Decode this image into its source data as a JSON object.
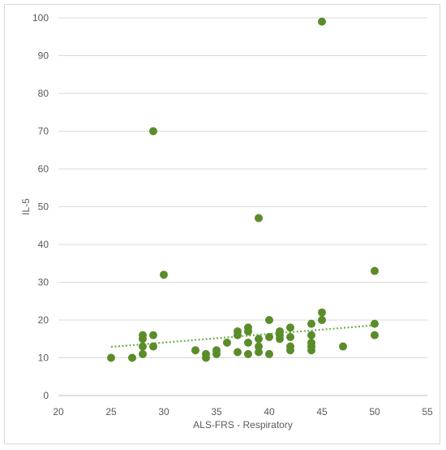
{
  "chart_data": {
    "type": "scatter",
    "xlabel": "ALS-FRS - Respiratory",
    "ylabel": "IL-5",
    "xlim": [
      20,
      55
    ],
    "ylim": [
      0,
      100
    ],
    "x_ticks": [
      "20",
      "25",
      "30",
      "35",
      "40",
      "45",
      "50",
      "55"
    ],
    "y_ticks": [
      "0",
      "10",
      "20",
      "30",
      "40",
      "50",
      "60",
      "70",
      "80",
      "90",
      "100"
    ],
    "grid": "horizontal",
    "legend": "none",
    "marker_color": "#5b8c2a",
    "trendline": {
      "type": "linear",
      "style": "dotted",
      "color": "#70ad47",
      "x": [
        25,
        50
      ],
      "y": [
        12.9,
        18.6
      ]
    },
    "points": [
      {
        "x": 25,
        "y": 10
      },
      {
        "x": 27,
        "y": 10
      },
      {
        "x": 28,
        "y": 11
      },
      {
        "x": 28,
        "y": 13
      },
      {
        "x": 28,
        "y": 15
      },
      {
        "x": 28,
        "y": 16
      },
      {
        "x": 29,
        "y": 13
      },
      {
        "x": 29,
        "y": 16
      },
      {
        "x": 29,
        "y": 70
      },
      {
        "x": 30,
        "y": 32
      },
      {
        "x": 33,
        "y": 12
      },
      {
        "x": 34,
        "y": 10
      },
      {
        "x": 34,
        "y": 11
      },
      {
        "x": 35,
        "y": 11
      },
      {
        "x": 35,
        "y": 12
      },
      {
        "x": 36,
        "y": 14
      },
      {
        "x": 37,
        "y": 11.5
      },
      {
        "x": 37,
        "y": 16
      },
      {
        "x": 37,
        "y": 17
      },
      {
        "x": 38,
        "y": 11
      },
      {
        "x": 38,
        "y": 14
      },
      {
        "x": 38,
        "y": 17
      },
      {
        "x": 38,
        "y": 18
      },
      {
        "x": 39,
        "y": 11.5
      },
      {
        "x": 39,
        "y": 13
      },
      {
        "x": 39,
        "y": 15
      },
      {
        "x": 39,
        "y": 47
      },
      {
        "x": 40,
        "y": 11
      },
      {
        "x": 40,
        "y": 15.5
      },
      {
        "x": 40,
        "y": 20
      },
      {
        "x": 41,
        "y": 15
      },
      {
        "x": 41,
        "y": 16
      },
      {
        "x": 41,
        "y": 17
      },
      {
        "x": 42,
        "y": 12
      },
      {
        "x": 42,
        "y": 13
      },
      {
        "x": 42,
        "y": 15.5
      },
      {
        "x": 42,
        "y": 18
      },
      {
        "x": 44,
        "y": 12
      },
      {
        "x": 44,
        "y": 13
      },
      {
        "x": 44,
        "y": 14
      },
      {
        "x": 44,
        "y": 16
      },
      {
        "x": 44,
        "y": 19
      },
      {
        "x": 45,
        "y": 20
      },
      {
        "x": 45,
        "y": 22
      },
      {
        "x": 45,
        "y": 99
      },
      {
        "x": 47,
        "y": 13
      },
      {
        "x": 50,
        "y": 16
      },
      {
        "x": 50,
        "y": 19
      },
      {
        "x": 50,
        "y": 33
      }
    ]
  }
}
